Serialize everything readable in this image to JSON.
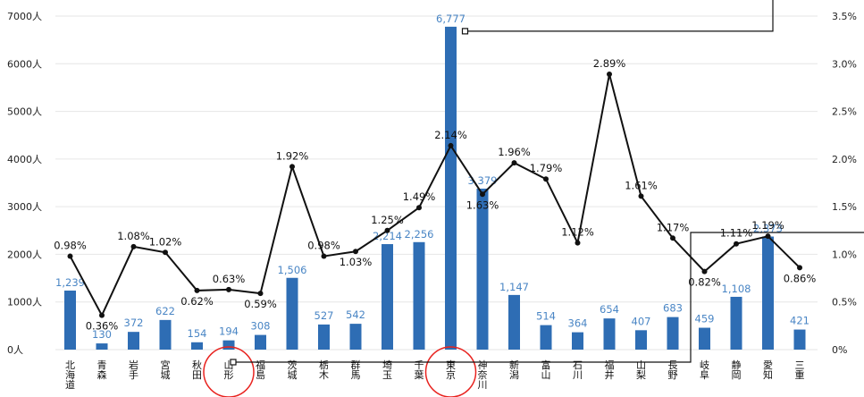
{
  "chart_data": {
    "type": "bar",
    "categories": [
      "北海道",
      "青森",
      "岩手",
      "宮城",
      "秋田",
      "山形",
      "福島",
      "茨城",
      "栃木",
      "群馬",
      "埼玉",
      "千葉",
      "東京",
      "神奈川",
      "新潟",
      "富山",
      "石川",
      "福井",
      "山梨",
      "長野",
      "岐阜",
      "静岡",
      "愛知",
      "三重"
    ],
    "series": [
      {
        "type": "bar",
        "axis": "left",
        "values": [
          1239,
          130,
          372,
          622,
          154,
          194,
          308,
          1506,
          527,
          542,
          2214,
          2256,
          6777,
          3379,
          1147,
          514,
          364,
          654,
          407,
          683,
          459,
          1108,
          2373,
          421
        ],
        "labels": [
          "1,239",
          "130",
          "372",
          "622",
          "154",
          "194",
          "308",
          "1,506",
          "527",
          "542",
          "2,214",
          "2,256",
          "6,777",
          "3,379",
          "1,147",
          "514",
          "364",
          "654",
          "407",
          "683",
          "459",
          "1,108",
          "2,373",
          "421"
        ]
      },
      {
        "type": "line",
        "axis": "right",
        "values": [
          0.98,
          0.36,
          1.08,
          1.02,
          0.62,
          0.63,
          0.59,
          1.92,
          0.98,
          1.03,
          1.25,
          1.49,
          2.14,
          1.63,
          1.96,
          1.79,
          1.12,
          2.89,
          1.61,
          1.17,
          0.82,
          1.11,
          1.19,
          0.86
        ],
        "labels": [
          "0.98%",
          "0.36%",
          "1.08%",
          "1.02%",
          "0.62%",
          "0.63%",
          "0.59%",
          "1.92%",
          "0.98%",
          "1.03%",
          "1.25%",
          "1.49%",
          "2.14%",
          "1.63%",
          "1.96%",
          "1.79%",
          "1.12%",
          "2.89%",
          "1.61%",
          "1.17%",
          "0.82%",
          "1.11%",
          "1.19%",
          "0.86%"
        ]
      }
    ],
    "left_axis": {
      "ylim": [
        0,
        7000
      ],
      "ticks": [
        "0人",
        "1000人",
        "2000人",
        "3000人",
        "4000人",
        "5000人",
        "6000人",
        "7000人"
      ]
    },
    "right_axis": {
      "ylim": [
        0,
        3.5
      ],
      "ticks": [
        "0%",
        "0.5%",
        "1.0%",
        "1.5%",
        "2.0%",
        "2.5%",
        "3.0%",
        "3.5%"
      ]
    },
    "highlighted_categories": [
      "山形",
      "東京"
    ],
    "grid": true,
    "colors": {
      "bar": "#2e6db4",
      "bar_label": "#4a86c5",
      "line": "#111111",
      "highlight": "#e8231f",
      "grid": "#e6e6e6"
    }
  }
}
